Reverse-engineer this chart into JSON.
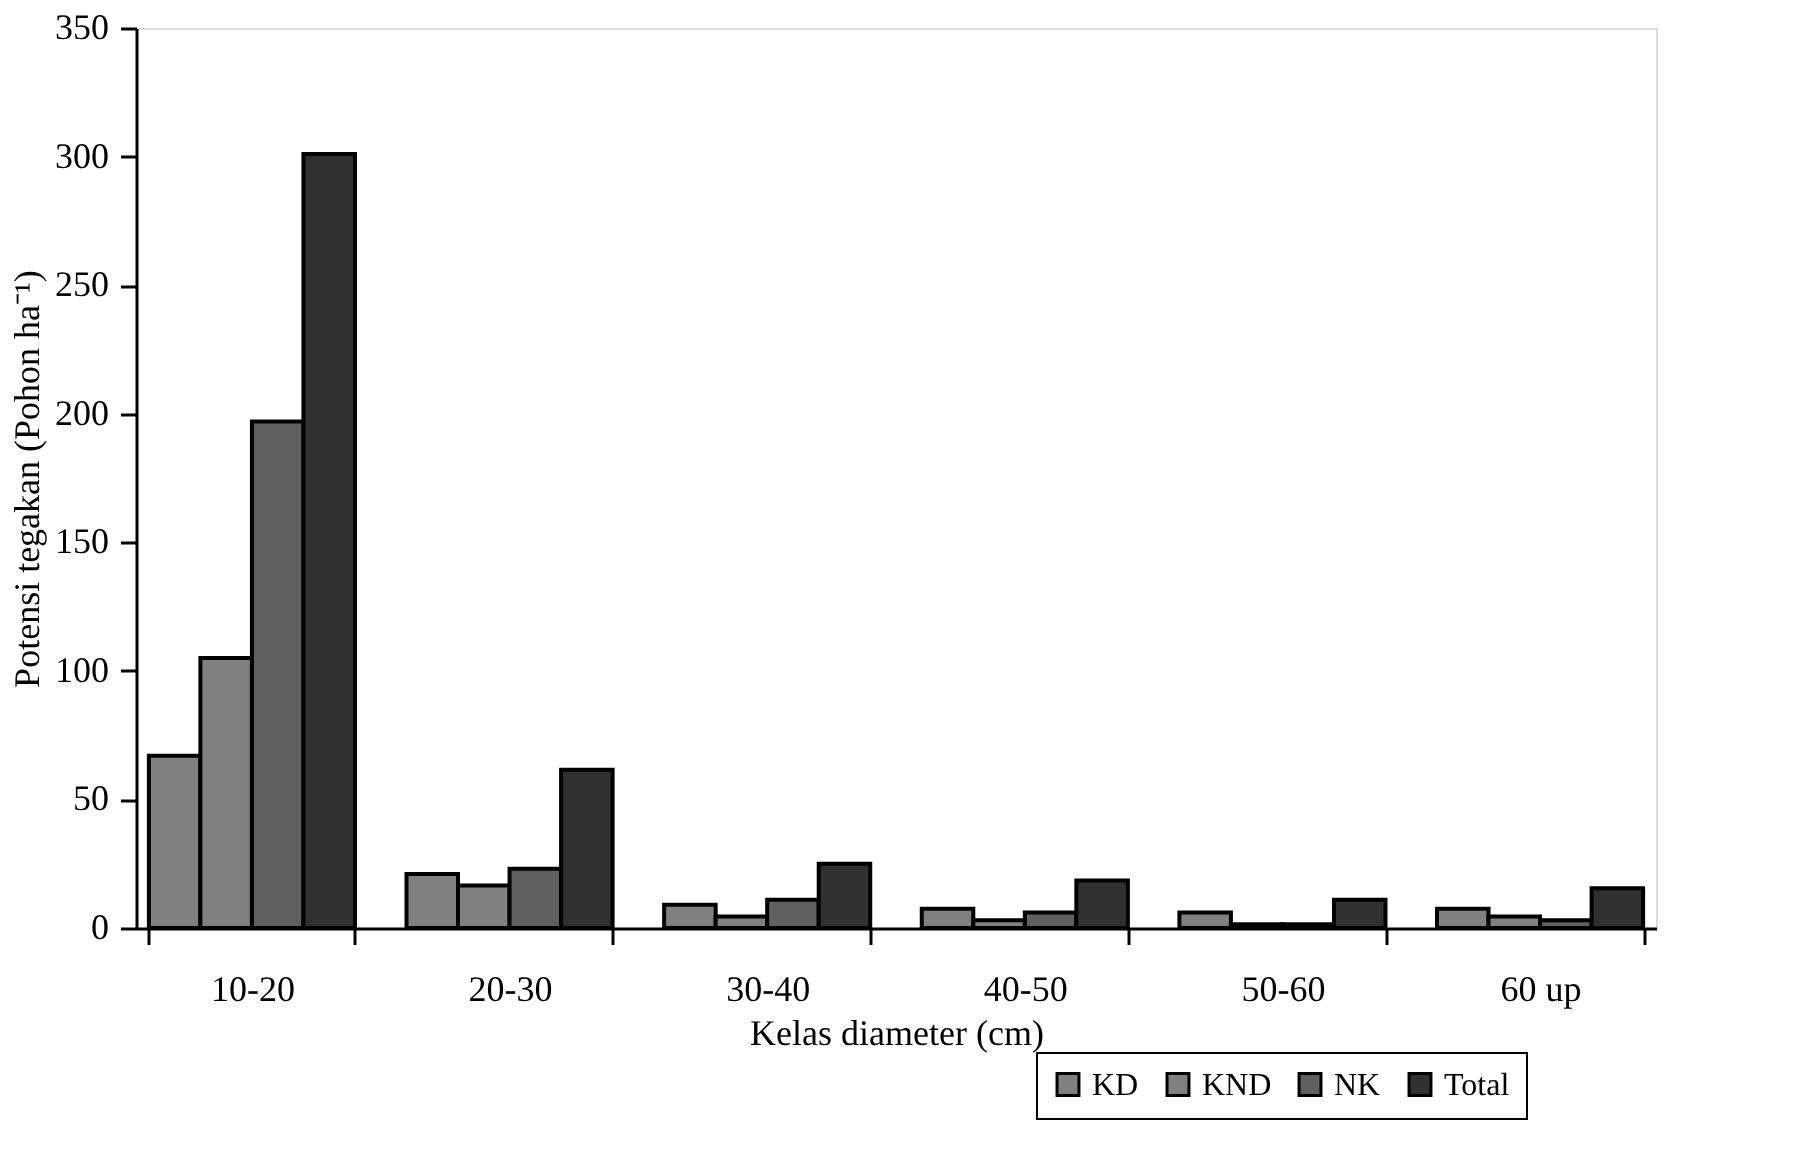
{
  "chart_data": {
    "type": "bar",
    "xlabel": "Kelas diameter (cm)",
    "ylabel": "Potensi tegakan (Pohon ha⁻¹)",
    "categories": [
      "10-20",
      "20-30",
      "30-40",
      "40-50",
      "50-60",
      "60 up"
    ],
    "series": [
      {
        "name": "KD",
        "color": "#808080",
        "values": [
          67,
          21,
          9,
          7.5,
          6,
          7.5
        ]
      },
      {
        "name": "KND",
        "color": "#808080",
        "values": [
          105,
          16.5,
          4.5,
          3,
          1.5,
          4.5
        ]
      },
      {
        "name": "NK",
        "color": "#606060",
        "values": [
          197,
          23,
          11,
          6,
          1.5,
          3
        ]
      },
      {
        "name": "Total",
        "color": "#303030",
        "values": [
          301,
          61.5,
          25,
          18.5,
          11,
          15.5
        ]
      }
    ],
    "ylim": [
      0,
      350
    ],
    "yticks": [
      0,
      50,
      100,
      150,
      200,
      250,
      300,
      350
    ],
    "grid": false,
    "legend": "bottom right"
  }
}
